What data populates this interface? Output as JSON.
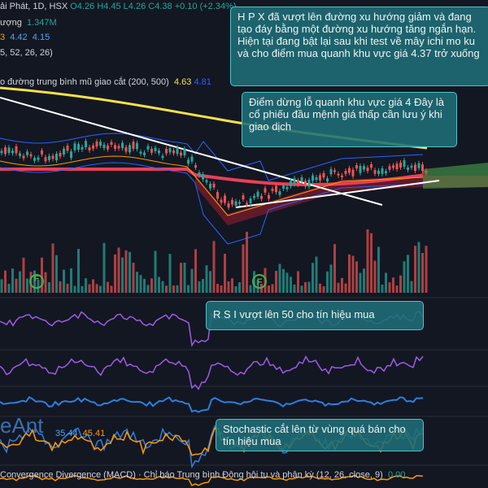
{
  "header": {
    "symbol": "ải Phát, 1D, HSX",
    "ohlc": [
      "O4.26",
      "H4.45",
      "L4.26",
      "C4.38"
    ],
    "change": "+0.10 (+2.34%)"
  },
  "legend": {
    "volume_label": "ượng",
    "volume_value": "1.347M",
    "ma_prefix": "3",
    "ma_values": [
      "4.42",
      "4.15"
    ],
    "ichimoku": "5, 52, 26, 26)",
    "ema_label": "o đường trung bình mũ giao cắt (200, 500)",
    "ema_values": [
      "4.63",
      "4.81"
    ]
  },
  "annotations": [
    "H P X đã vượt lên đường xu hướng giảm và đang tạo đáy bằng một đường xu hướng tăng ngắn hạn. Hiện tại đang bật lại sau khi test về mây ichi mo ku và cho điểm mua quanh khu vực giá 4.37 trở xuống",
    "Điểm dừng lỗ quanh khu vực giá 4 Đây là cổ phiếu đầu mệnh giá thấp cần lưu ý khi giao dịch",
    "R S I vượt lên 50 cho tín hiệu mua",
    "Stochastic cắt lên từ vùng quá bán cho tín hiệu mua"
  ],
  "markers": [
    "F",
    "F"
  ],
  "stoch_values": [
    "35.44",
    "45.41"
  ],
  "watermark": "eAnt",
  "macd": {
    "label": "Convergence Divergence (MACD) · Chỉ báo Trung bình Động hội tụ và phân kỳ (12, 26, close, 9)",
    "value": "0.00"
  }
}
